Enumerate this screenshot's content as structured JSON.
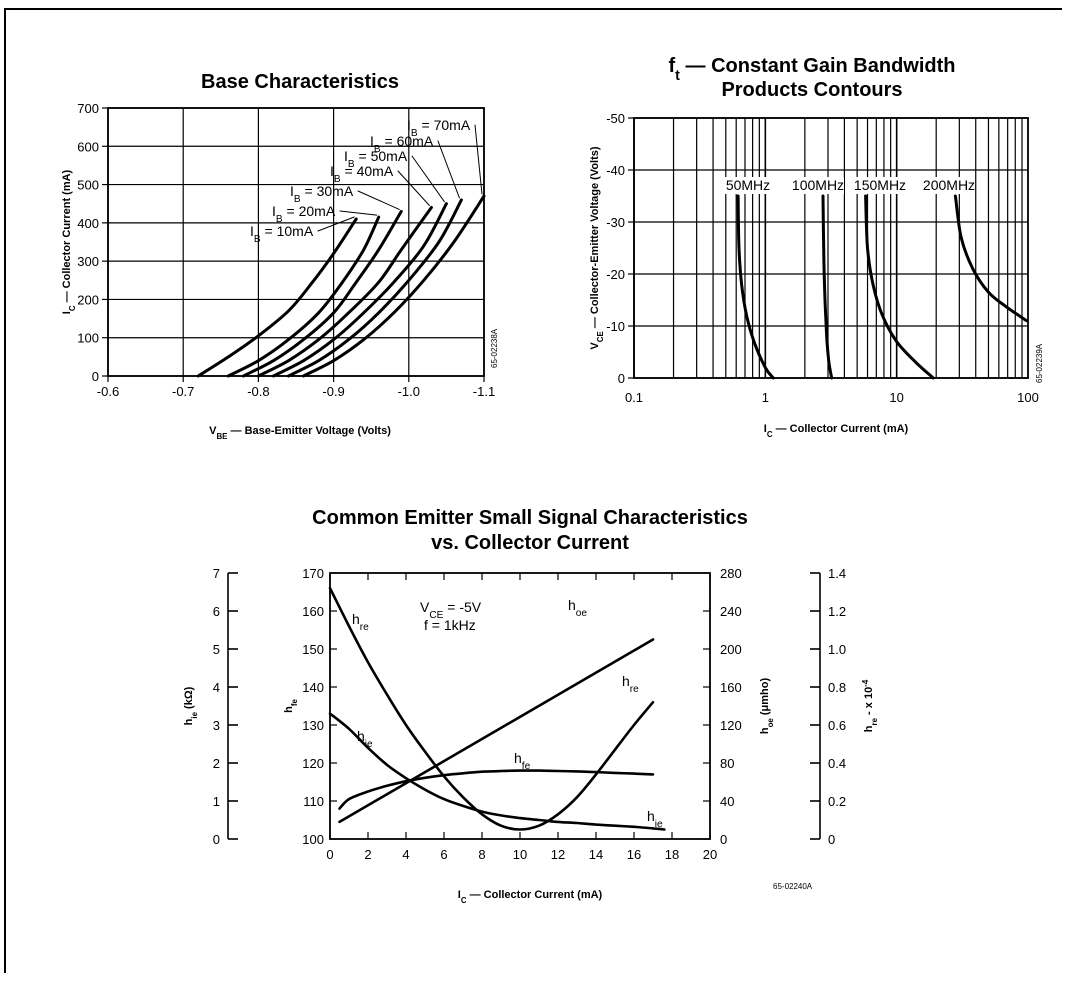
{
  "chart_data": [
    {
      "id": "base",
      "type": "line",
      "title": "Base Characteristics",
      "xlabel": "V",
      "xlabel_sub": "BE",
      "xlabel_rest": " — Base-Emitter Voltage (Volts)",
      "ylabel": "I",
      "ylabel_sub": "C",
      "ylabel_rest": " — Collector Current (mA)",
      "code": "65-02238A",
      "xlim": [
        -0.6,
        -1.1
      ],
      "ylim": [
        0,
        700
      ],
      "xticks": [
        -0.6,
        -0.7,
        -0.8,
        -0.9,
        -1.0,
        -1.1
      ],
      "xtick_labels": [
        "-0.6",
        "-0.7",
        "-0.8",
        "-0.9",
        "-1.0",
        "-1.1"
      ],
      "yticks": [
        0,
        100,
        200,
        300,
        400,
        500,
        600,
        700
      ],
      "ytick_labels": [
        "0",
        "100",
        "200",
        "300",
        "400",
        "500",
        "600",
        "700"
      ],
      "series": [
        {
          "name": "I",
          "sub": "B",
          "rest": " = 10mA",
          "x": [
            -0.72,
            -0.76,
            -0.8,
            -0.84,
            -0.87,
            -0.9,
            -0.93
          ],
          "y": [
            0,
            50,
            105,
            170,
            240,
            320,
            410
          ]
        },
        {
          "name": "I",
          "sub": "B",
          "rest": " = 20mA",
          "x": [
            -0.76,
            -0.8,
            -0.84,
            -0.88,
            -0.91,
            -0.94,
            -0.96
          ],
          "y": [
            0,
            40,
            95,
            165,
            240,
            330,
            415
          ]
        },
        {
          "name": "I",
          "sub": "B",
          "rest": " = 30mA",
          "x": [
            -0.78,
            -0.82,
            -0.86,
            -0.9,
            -0.93,
            -0.96,
            -0.99
          ],
          "y": [
            0,
            40,
            95,
            165,
            245,
            330,
            430
          ]
        },
        {
          "name": "I",
          "sub": "B",
          "rest": " = 40mA",
          "x": [
            -0.8,
            -0.84,
            -0.88,
            -0.92,
            -0.96,
            -0.99,
            -1.03
          ],
          "y": [
            0,
            40,
            95,
            165,
            245,
            330,
            440
          ]
        },
        {
          "name": "I",
          "sub": "B",
          "rest": " = 50mA",
          "x": [
            -0.82,
            -0.86,
            -0.9,
            -0.94,
            -0.98,
            -1.02,
            -1.05
          ],
          "y": [
            0,
            40,
            95,
            165,
            245,
            340,
            450
          ]
        },
        {
          "name": "I",
          "sub": "B",
          "rest": " = 60mA",
          "x": [
            -0.84,
            -0.88,
            -0.92,
            -0.96,
            -1.0,
            -1.04,
            -1.07
          ],
          "y": [
            0,
            40,
            95,
            165,
            250,
            350,
            460
          ]
        },
        {
          "name": "I",
          "sub": "B",
          "rest": " = 70mA",
          "x": [
            -0.86,
            -0.9,
            -0.94,
            -0.98,
            -1.02,
            -1.06,
            -1.1
          ],
          "y": [
            0,
            40,
            95,
            165,
            250,
            350,
            470
          ]
        }
      ]
    },
    {
      "id": "ft",
      "type": "line",
      "title_main": "f",
      "title_sub": "t",
      "title_rest": " — Constant Gain Bandwidth",
      "title_line2": "Products Contours",
      "xlabel": "I",
      "xlabel_sub": "C",
      "xlabel_rest": " — Collector Current (mA)",
      "ylabel": "V",
      "ylabel_sub": "CE",
      "ylabel_rest": " — Collector-Emitter Voltage (Volts)",
      "code": "65-02239A",
      "xscale": "log",
      "xlim": [
        0.1,
        100
      ],
      "ylim": [
        0,
        -50
      ],
      "xticks": [
        0.1,
        1,
        10,
        100
      ],
      "xtick_labels": [
        "0.1",
        "1",
        "10",
        "100"
      ],
      "yticks": [
        0,
        -10,
        -20,
        -30,
        -40,
        -50
      ],
      "ytick_labels": [
        "0",
        "-10",
        "-20",
        "-30",
        "-40",
        "-50"
      ],
      "series": [
        {
          "name": "50MHz",
          "x": [
            0.62,
            0.63,
            0.66,
            0.72,
            0.82,
            1.0,
            1.15
          ],
          "y": [
            -35,
            -25,
            -18,
            -12,
            -7,
            -2,
            0
          ]
        },
        {
          "name": "100MHz",
          "x": [
            2.75,
            2.78,
            2.82,
            2.88,
            2.95,
            3.05,
            3.2
          ],
          "y": [
            -35,
            -25,
            -18,
            -12,
            -7,
            -3,
            0
          ]
        },
        {
          "name": "150MHz",
          "x": [
            5.8,
            6.0,
            6.6,
            7.8,
            10.0,
            14.0,
            19.0
          ],
          "y": [
            -35,
            -25,
            -18,
            -12,
            -7,
            -3,
            0
          ]
        },
        {
          "name": "200MHz",
          "x": [
            28,
            31,
            38,
            50,
            70,
            98
          ],
          "y": [
            -35,
            -27,
            -21,
            -16.5,
            -13.5,
            -11
          ]
        }
      ]
    },
    {
      "id": "ce",
      "type": "line",
      "title": "Common Emitter Small Signal Characteristics",
      "title_line2": "vs. Collector Current",
      "xlabel": "I",
      "xlabel_sub": "C",
      "xlabel_rest": " — Collector Current (mA)",
      "code": "65-02240A",
      "xlim": [
        0,
        20
      ],
      "xticks": [
        0,
        2,
        4,
        6,
        8,
        10,
        12,
        14,
        16,
        18,
        20
      ],
      "xtick_labels": [
        "0",
        "2",
        "4",
        "6",
        "8",
        "10",
        "12",
        "14",
        "16",
        "18",
        "20"
      ],
      "hfe_axis": {
        "label": "h",
        "sub": "fe",
        "lim": [
          100,
          170
        ],
        "ticks": [
          "100",
          "110",
          "120",
          "130",
          "140",
          "150",
          "160",
          "170"
        ]
      },
      "hie_axis": {
        "label": "h",
        "sub": "ie",
        "rest": " (kΩ)",
        "lim": [
          0,
          7
        ],
        "ticks": [
          "0",
          "1",
          "2",
          "3",
          "4",
          "5",
          "6",
          "7"
        ]
      },
      "hoe_axis": {
        "label": "h",
        "sub": "oe",
        "rest": " (μmho)",
        "lim": [
          0,
          280
        ],
        "ticks": [
          "0",
          "40",
          "80",
          "120",
          "160",
          "200",
          "240",
          "280"
        ]
      },
      "hre_axis": {
        "label": "h",
        "sub": "re",
        "rest": " - x 10",
        "sup": "-4",
        "lim": [
          0,
          1.4
        ],
        "ticks": [
          "0",
          "0.2",
          "0.4",
          "0.6",
          "0.8",
          "1.0",
          "1.2",
          "1.4"
        ]
      },
      "conditions": {
        "line1_main": "V",
        "line1_sub": "CE",
        "line1_rest": " = -5V",
        "line2": "f = 1kHz"
      },
      "series": [
        {
          "name": "h",
          "sub": "re",
          "axis": "hre",
          "x": [
            0,
            1,
            2,
            3,
            4,
            5,
            6,
            7,
            8,
            9,
            10,
            11,
            12,
            13,
            14,
            15,
            16,
            17
          ],
          "y": [
            1.32,
            1.12,
            0.93,
            0.76,
            0.6,
            0.46,
            0.33,
            0.22,
            0.13,
            0.07,
            0.05,
            0.07,
            0.13,
            0.22,
            0.34,
            0.47,
            0.6,
            0.72
          ]
        },
        {
          "name": "h",
          "sub": "ie",
          "axis": "hie",
          "x": [
            0,
            1,
            2,
            3,
            4,
            5,
            6,
            7,
            8,
            9,
            10,
            11,
            12,
            13,
            14,
            15,
            16,
            17,
            17.6
          ],
          "y": [
            3.3,
            2.9,
            2.4,
            1.95,
            1.6,
            1.3,
            1.05,
            0.87,
            0.72,
            0.62,
            0.55,
            0.5,
            0.45,
            0.42,
            0.38,
            0.35,
            0.32,
            0.28,
            0.25
          ]
        },
        {
          "name": "h",
          "sub": "fe",
          "axis": "hfe",
          "x": [
            0.5,
            1,
            2,
            3,
            4,
            5,
            6,
            7,
            8,
            9,
            10,
            11,
            12,
            13,
            14,
            15,
            16,
            17
          ],
          "y": [
            108,
            110.5,
            112.5,
            114,
            115.2,
            116.1,
            116.8,
            117.3,
            117.7,
            117.9,
            118,
            118,
            117.9,
            117.8,
            117.6,
            117.4,
            117.2,
            117
          ]
        },
        {
          "name": "h",
          "sub": "oe",
          "axis": "hoe",
          "x": [
            0.5,
            17
          ],
          "y": [
            18,
            210
          ]
        }
      ]
    }
  ]
}
